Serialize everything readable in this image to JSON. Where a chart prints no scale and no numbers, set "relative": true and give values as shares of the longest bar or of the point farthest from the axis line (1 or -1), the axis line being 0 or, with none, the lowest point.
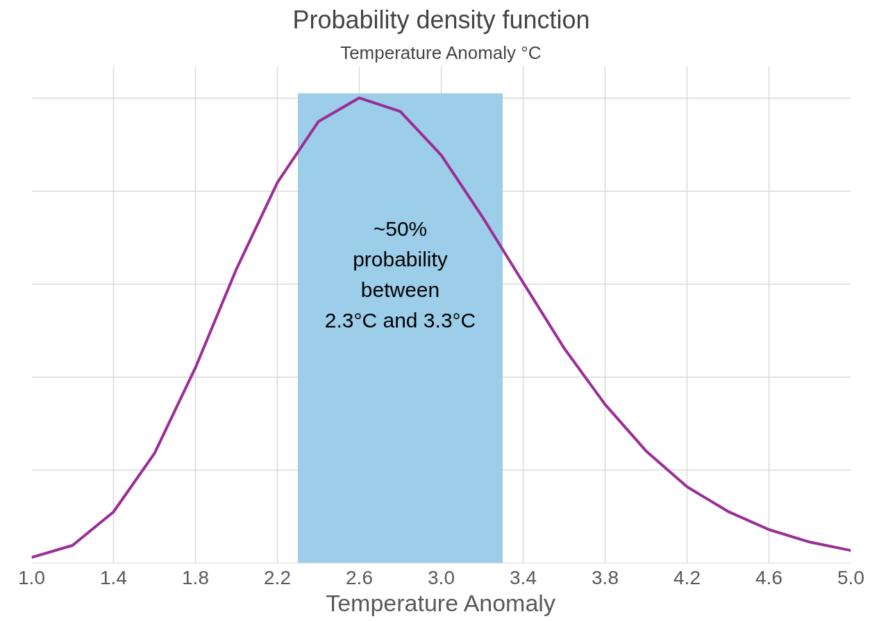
{
  "chart_data": {
    "type": "line",
    "title": "Probability density function",
    "subtitle": "Temperature Anomaly °C",
    "xlabel": "Temperature Anomaly",
    "relative": true,
    "x": [
      1.0,
      1.2,
      1.4,
      1.6,
      1.8,
      2.0,
      2.2,
      2.4,
      2.6,
      2.8,
      3.0,
      3.2,
      3.4,
      3.6,
      3.8,
      4.0,
      4.2,
      4.4,
      4.6,
      4.8,
      5.0
    ],
    "series": [
      {
        "color": "#9b2d96",
        "values": [
          0.012,
          0.038,
          0.11,
          0.236,
          0.42,
          0.632,
          0.818,
          0.949,
          1,
          0.971,
          0.877,
          0.745,
          0.603,
          0.462,
          0.341,
          0.241,
          0.164,
          0.111,
          0.072,
          0.045,
          0.027
        ]
      }
    ],
    "xlim": [
      1.0,
      5.0
    ],
    "xticks": [
      {
        "value": 1.0,
        "label": "1.0"
      },
      1.4,
      1.8,
      2.2,
      2.6,
      {
        "value": 3.0,
        "label": "3.0"
      },
      3.4,
      3.8,
      4.2,
      4.6,
      {
        "value": 5.0,
        "label": "5.0"
      }
    ],
    "bands": [
      {
        "axis": "x",
        "from": 2.3,
        "to": 3.3,
        "label": "~50%\nprobability\nbetween\n2.3°C and 3.3°C",
        "color": "#9ccde9"
      }
    ],
    "grid": true,
    "line_style": "solid",
    "marker": "none"
  }
}
